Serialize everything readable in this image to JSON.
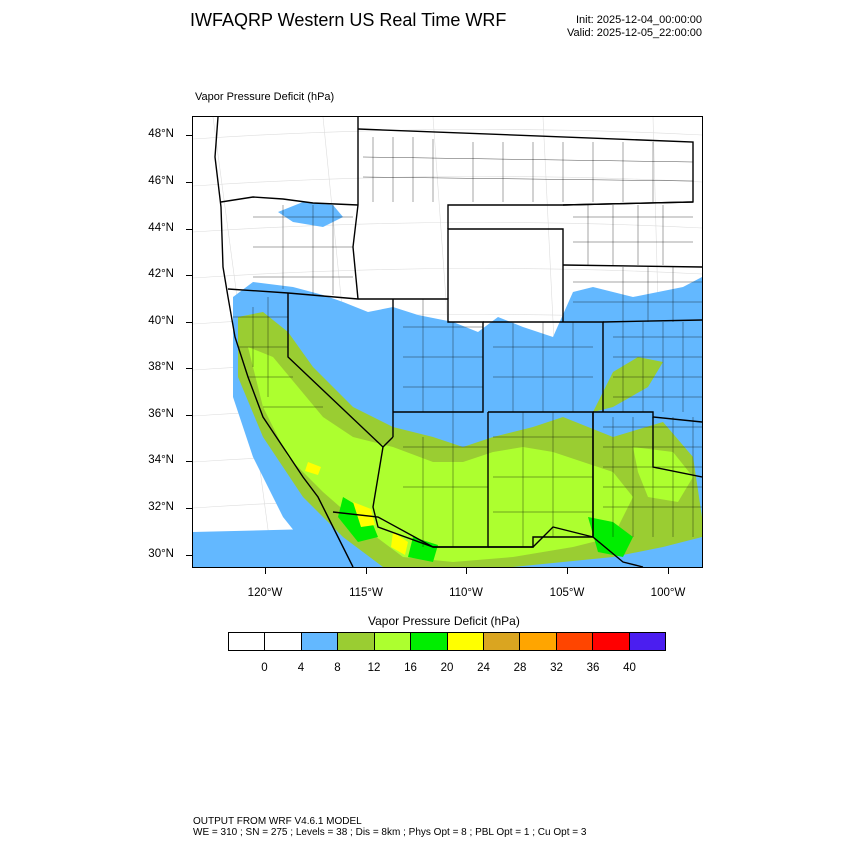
{
  "header": {
    "title": "IWFAQRP Western US Real Time WRF",
    "init": "Init: 2025-12-04_00:00:00",
    "valid": "Valid: 2025-12-05_22:00:00"
  },
  "map": {
    "subtitle": "Vapor Pressure Deficit   (hPa)",
    "lat_labels": [
      "48°N",
      "46°N",
      "44°N",
      "42°N",
      "40°N",
      "38°N",
      "36°N",
      "34°N",
      "32°N",
      "30°N"
    ],
    "lon_labels": [
      "120°W",
      "115°W",
      "110°W",
      "105°W",
      "100°W"
    ]
  },
  "colorbar": {
    "title": "Vapor Pressure Deficit  (hPa)",
    "colors": [
      "#ffffff",
      "#ffffff",
      "#63b8ff",
      "#9acd32",
      "#adff2f",
      "#00ee00",
      "#ffff00",
      "#daa520",
      "#ffa500",
      "#ff4500",
      "#ff0000",
      "#4b1ef0"
    ],
    "labels": [
      "0",
      "4",
      "8",
      "12",
      "16",
      "20",
      "24",
      "28",
      "32",
      "36",
      "40"
    ]
  },
  "footer": {
    "line1": "OUTPUT FROM WRF V4.6.1 MODEL",
    "line2": "WE = 310 ; SN = 275 ; Levels = 38 ; Dis = 8km ; Phys Opt = 8 ; PBL Opt = 1 ; Cu Opt = 3"
  }
}
